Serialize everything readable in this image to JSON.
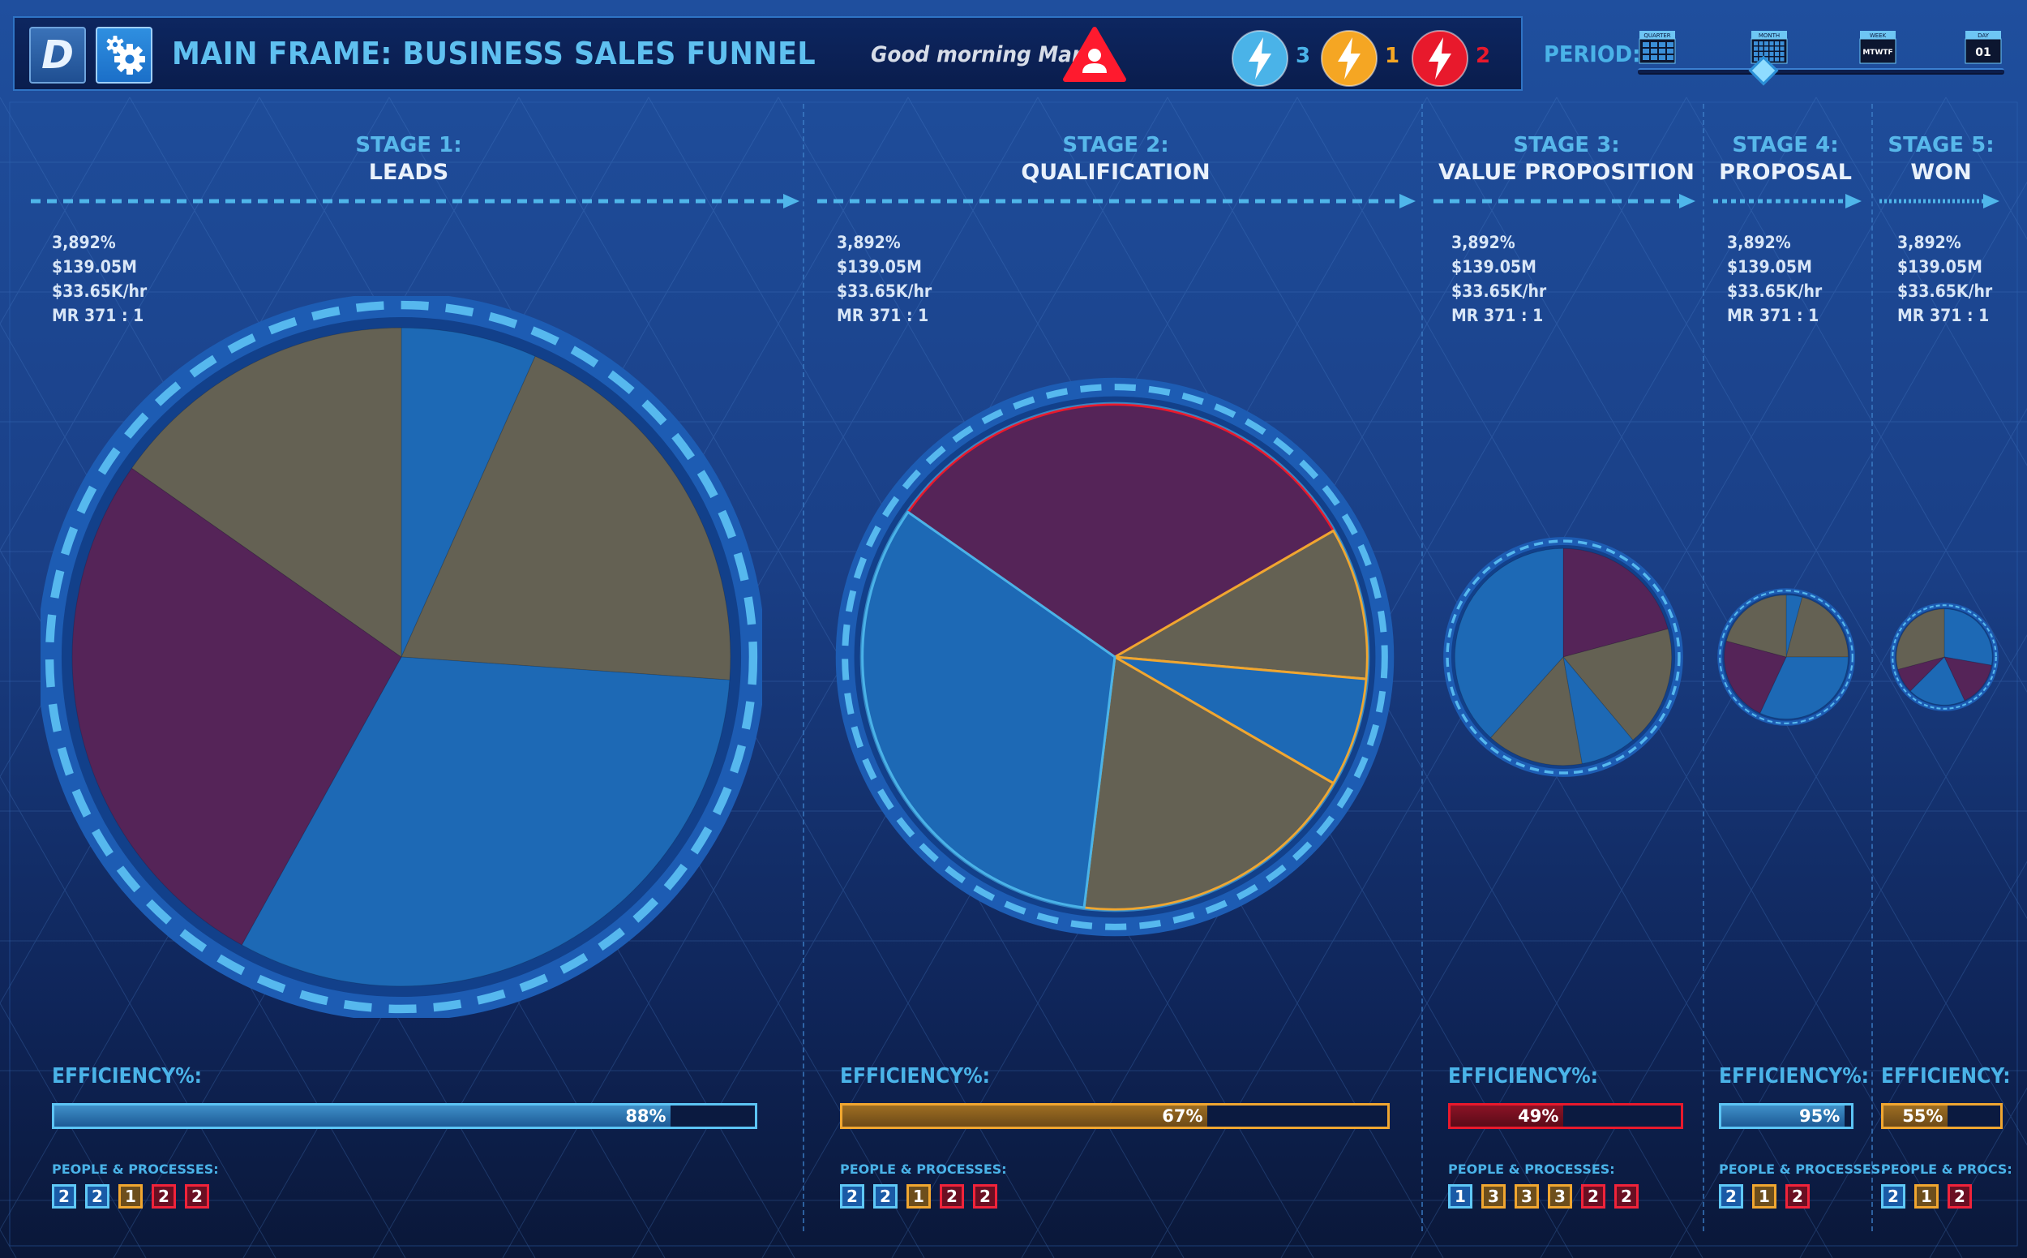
{
  "header": {
    "logo_letter": "D",
    "title": "MAIN FRAME: BUSINESS SALES FUNNEL",
    "greeting": "Good morning Mark!",
    "alerts": [
      {
        "icon": "lightning-icon",
        "count": "3",
        "color": "#4ab3e8"
      },
      {
        "icon": "lightning-icon",
        "count": "1",
        "color": "#f5a623"
      },
      {
        "icon": "lightning-icon",
        "count": "2",
        "color": "#e8192c"
      }
    ]
  },
  "period": {
    "label": "PERIOD:",
    "options": [
      "QUARTER",
      "MONTH",
      "WEEK",
      "DAY"
    ],
    "day_number": "01",
    "week_letters": "MTWTF",
    "selected": "MONTH"
  },
  "colors": {
    "blue": "#1d69b5",
    "purple": "#552458",
    "gray": "#646153",
    "accent_blue": "#4ab3e8",
    "orange": "#f0a630",
    "red": "#e8192c"
  },
  "stages": [
    {
      "num": "STAGE 1:",
      "name": "LEADS",
      "stats": [
        "3,892%",
        "$139.05M",
        "$33.65K/hr",
        "MR 371 : 1"
      ],
      "pie": {
        "startAngle": 0,
        "slices": [
          {
            "angle": 24,
            "color": "blue"
          },
          {
            "angle": 70,
            "color": "gray"
          },
          {
            "angle": 115,
            "color": "blue"
          },
          {
            "angle": 96,
            "color": "purple"
          },
          {
            "angle": 55,
            "color": "gray"
          }
        ]
      },
      "efficiency_label": "EFFICIENCY%:",
      "efficiency": 88,
      "efficiency_text": "88%",
      "eff_color": "blue",
      "pp_label": "PEOPLE & PROCESSES:",
      "pp": [
        {
          "v": "2",
          "c": "blue"
        },
        {
          "v": "2",
          "c": "blue"
        },
        {
          "v": "1",
          "c": "orange"
        },
        {
          "v": "2",
          "c": "red"
        },
        {
          "v": "2",
          "c": "red"
        }
      ]
    },
    {
      "num": "STAGE 2:",
      "name": "QUALIFICATION",
      "stats": [
        "3,892%",
        "$139.05M",
        "$33.65K/hr",
        "MR 371 : 1"
      ],
      "pie": {
        "startAngle": -55,
        "slices": [
          {
            "angle": 115,
            "color": "purple",
            "stroke": "red"
          },
          {
            "angle": 35,
            "color": "gray",
            "stroke": "orange"
          },
          {
            "angle": 25,
            "color": "blue",
            "stroke": "orange"
          },
          {
            "angle": 67,
            "color": "gray",
            "stroke": "orange"
          },
          {
            "angle": 118,
            "color": "blue",
            "stroke": "accent_blue"
          }
        ]
      },
      "efficiency_label": "EFFICIENCY%:",
      "efficiency": 67,
      "efficiency_text": "67%",
      "eff_color": "orange",
      "pp_label": "PEOPLE & PROCESSES:",
      "pp": [
        {
          "v": "2",
          "c": "blue"
        },
        {
          "v": "2",
          "c": "blue"
        },
        {
          "v": "1",
          "c": "orange"
        },
        {
          "v": "2",
          "c": "red"
        },
        {
          "v": "2",
          "c": "red"
        }
      ]
    },
    {
      "num": "STAGE 3:",
      "name": "VALUE PROPOSITION",
      "stats": [
        "3,892%",
        "$139.05M",
        "$33.65K/hr",
        "MR 371 : 1"
      ],
      "pie": {
        "startAngle": 0,
        "slices": [
          {
            "angle": 75,
            "color": "purple"
          },
          {
            "angle": 65,
            "color": "gray"
          },
          {
            "angle": 30,
            "color": "blue"
          },
          {
            "angle": 52,
            "color": "gray"
          },
          {
            "angle": 138,
            "color": "blue"
          }
        ]
      },
      "efficiency_label": "EFFICIENCY%:",
      "efficiency": 49,
      "efficiency_text": "49%",
      "eff_color": "red",
      "pp_label": "PEOPLE & PROCESSES:",
      "pp": [
        {
          "v": "1",
          "c": "blue"
        },
        {
          "v": "3",
          "c": "orange"
        },
        {
          "v": "3",
          "c": "orange"
        },
        {
          "v": "3",
          "c": "orange"
        },
        {
          "v": "2",
          "c": "red"
        },
        {
          "v": "2",
          "c": "red"
        }
      ]
    },
    {
      "num": "STAGE 4:",
      "name": "PROPOSAL",
      "stats": [
        "3,892%",
        "$139.05M",
        "$33.65K/hr",
        "MR 371 : 1"
      ],
      "pie": {
        "startAngle": 0,
        "slices": [
          {
            "angle": 15,
            "color": "blue"
          },
          {
            "angle": 75,
            "color": "gray"
          },
          {
            "angle": 115,
            "color": "blue"
          },
          {
            "angle": 80,
            "color": "purple"
          },
          {
            "angle": 75,
            "color": "gray"
          }
        ]
      },
      "efficiency_label": "EFFICIENCY%:",
      "efficiency": 95,
      "efficiency_text": "95%",
      "eff_color": "blue",
      "pp_label": "PEOPLE & PROCESSES:",
      "pp": [
        {
          "v": "2",
          "c": "blue"
        },
        {
          "v": "1",
          "c": "orange"
        },
        {
          "v": "2",
          "c": "red"
        }
      ]
    },
    {
      "num": "STAGE 5:",
      "name": "WON",
      "stats": [
        "3,892%",
        "$139.05M",
        "$33.65K/hr",
        "MR 371 : 1"
      ],
      "pie": {
        "startAngle": 0,
        "slices": [
          {
            "angle": 100,
            "color": "blue"
          },
          {
            "angle": 55,
            "color": "purple"
          },
          {
            "angle": 70,
            "color": "blue"
          },
          {
            "angle": 30,
            "color": "purple"
          },
          {
            "angle": 105,
            "color": "gray"
          }
        ]
      },
      "efficiency_label": "EFFICIENCY:",
      "efficiency": 55,
      "efficiency_text": "55%",
      "eff_color": "orange",
      "pp_label": "PEOPLE & PROCS:",
      "pp": [
        {
          "v": "2",
          "c": "blue"
        },
        {
          "v": "1",
          "c": "orange"
        },
        {
          "v": "2",
          "c": "red"
        }
      ]
    }
  ]
}
